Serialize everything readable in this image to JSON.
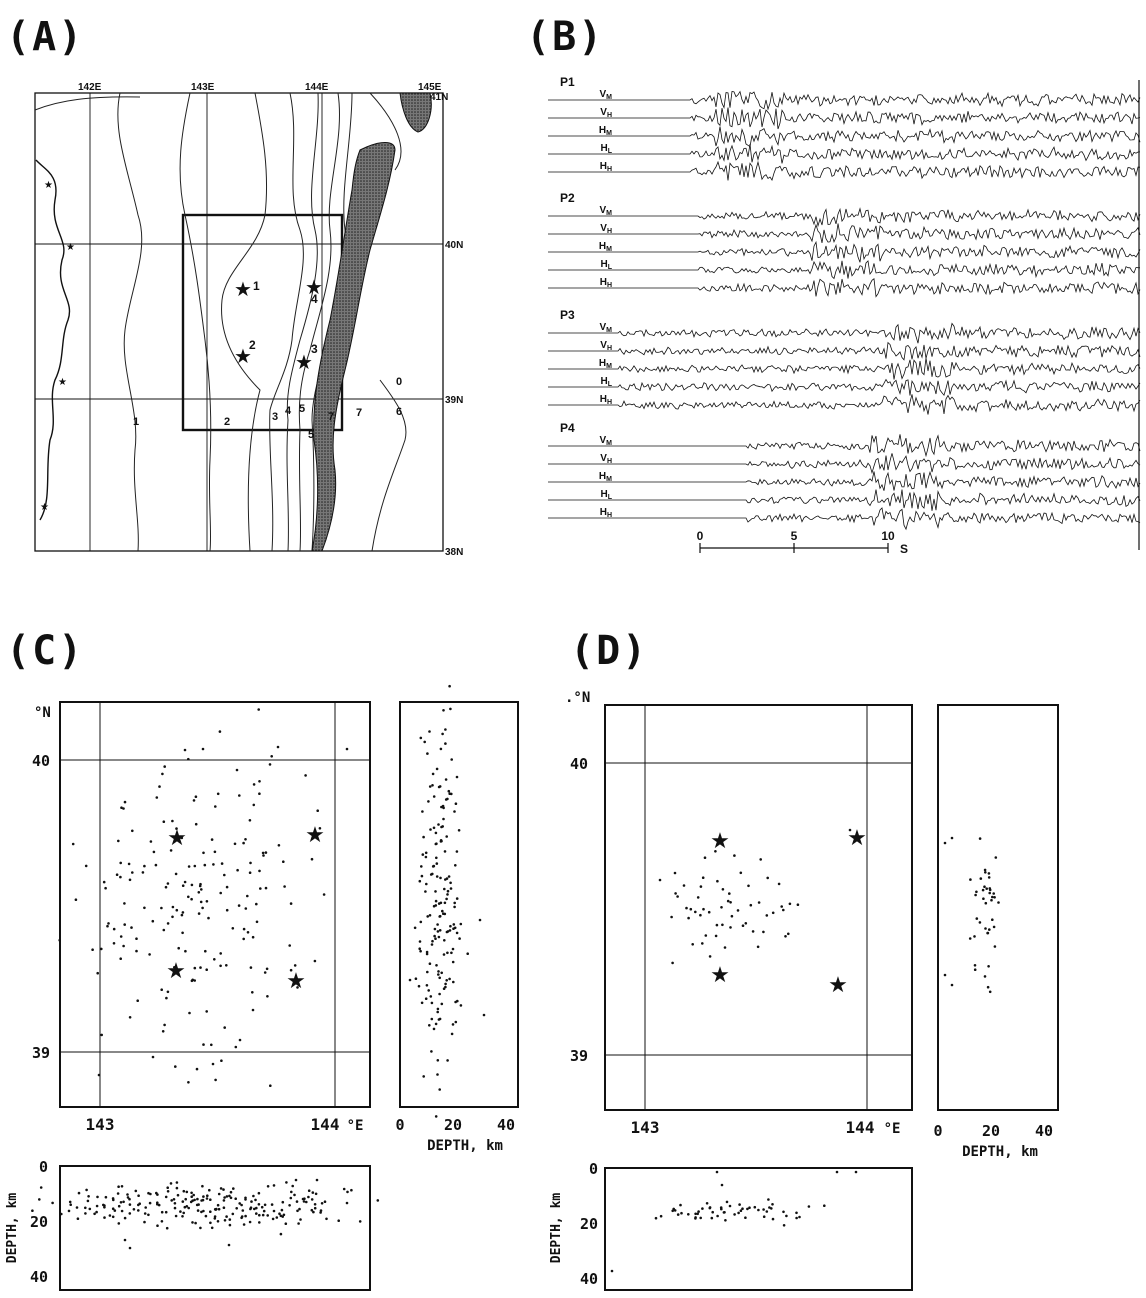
{
  "figure": {
    "panel_labels": [
      "(A)",
      "(B)",
      "(C)",
      "(D)"
    ]
  },
  "map_a": {
    "lon_labels": [
      "142E",
      "143E",
      "144E",
      "145E"
    ],
    "lat_labels": [
      "41N",
      "40N",
      "39N",
      "38N"
    ],
    "contour_labels": [
      "1",
      "2",
      "3",
      "4",
      "5",
      "5",
      "6",
      "7",
      "7",
      "0"
    ],
    "station_labels": [
      "1",
      "2",
      "3",
      "4"
    ]
  },
  "waveforms": {
    "groups": [
      {
        "name": "P1",
        "channels": [
          "VM",
          "VH",
          "HM",
          "HL",
          "HH"
        ],
        "onset": 0.18,
        "burst": 0.3
      },
      {
        "name": "P2",
        "channels": [
          "VM",
          "VH",
          "HM",
          "HL",
          "HH"
        ],
        "onset": 0.2,
        "burst": 0.52
      },
      {
        "name": "P3",
        "channels": [
          "VM",
          "VH",
          "HM",
          "HL",
          "HH"
        ],
        "onset": 0.0,
        "burst": 0.68
      },
      {
        "name": "P4",
        "channels": [
          "VM",
          "VH",
          "HM",
          "HL",
          "HH"
        ],
        "onset": 0.32,
        "burst": 0.65
      }
    ],
    "time_ticks": [
      "0",
      "5",
      "10"
    ],
    "time_unit": "S"
  },
  "panel_c": {
    "lat_unit": "°N",
    "lat_ticks": [
      "40",
      "39"
    ],
    "lon_ticks": [
      "143",
      "144"
    ],
    "lon_unit": "°E",
    "depth_ticks": [
      "0",
      "20",
      "40"
    ],
    "depth_label": "DEPTH, km"
  },
  "panel_d": {
    "lat_unit": ".°N",
    "lat_ticks": [
      "40",
      "39"
    ],
    "lon_ticks": [
      "143",
      "144"
    ],
    "lon_unit": "°E",
    "depth_ticks": [
      "0",
      "20",
      "40"
    ],
    "depth_label": "DEPTH, km"
  },
  "colors": {
    "ink": "#111111",
    "land": "#555555"
  }
}
